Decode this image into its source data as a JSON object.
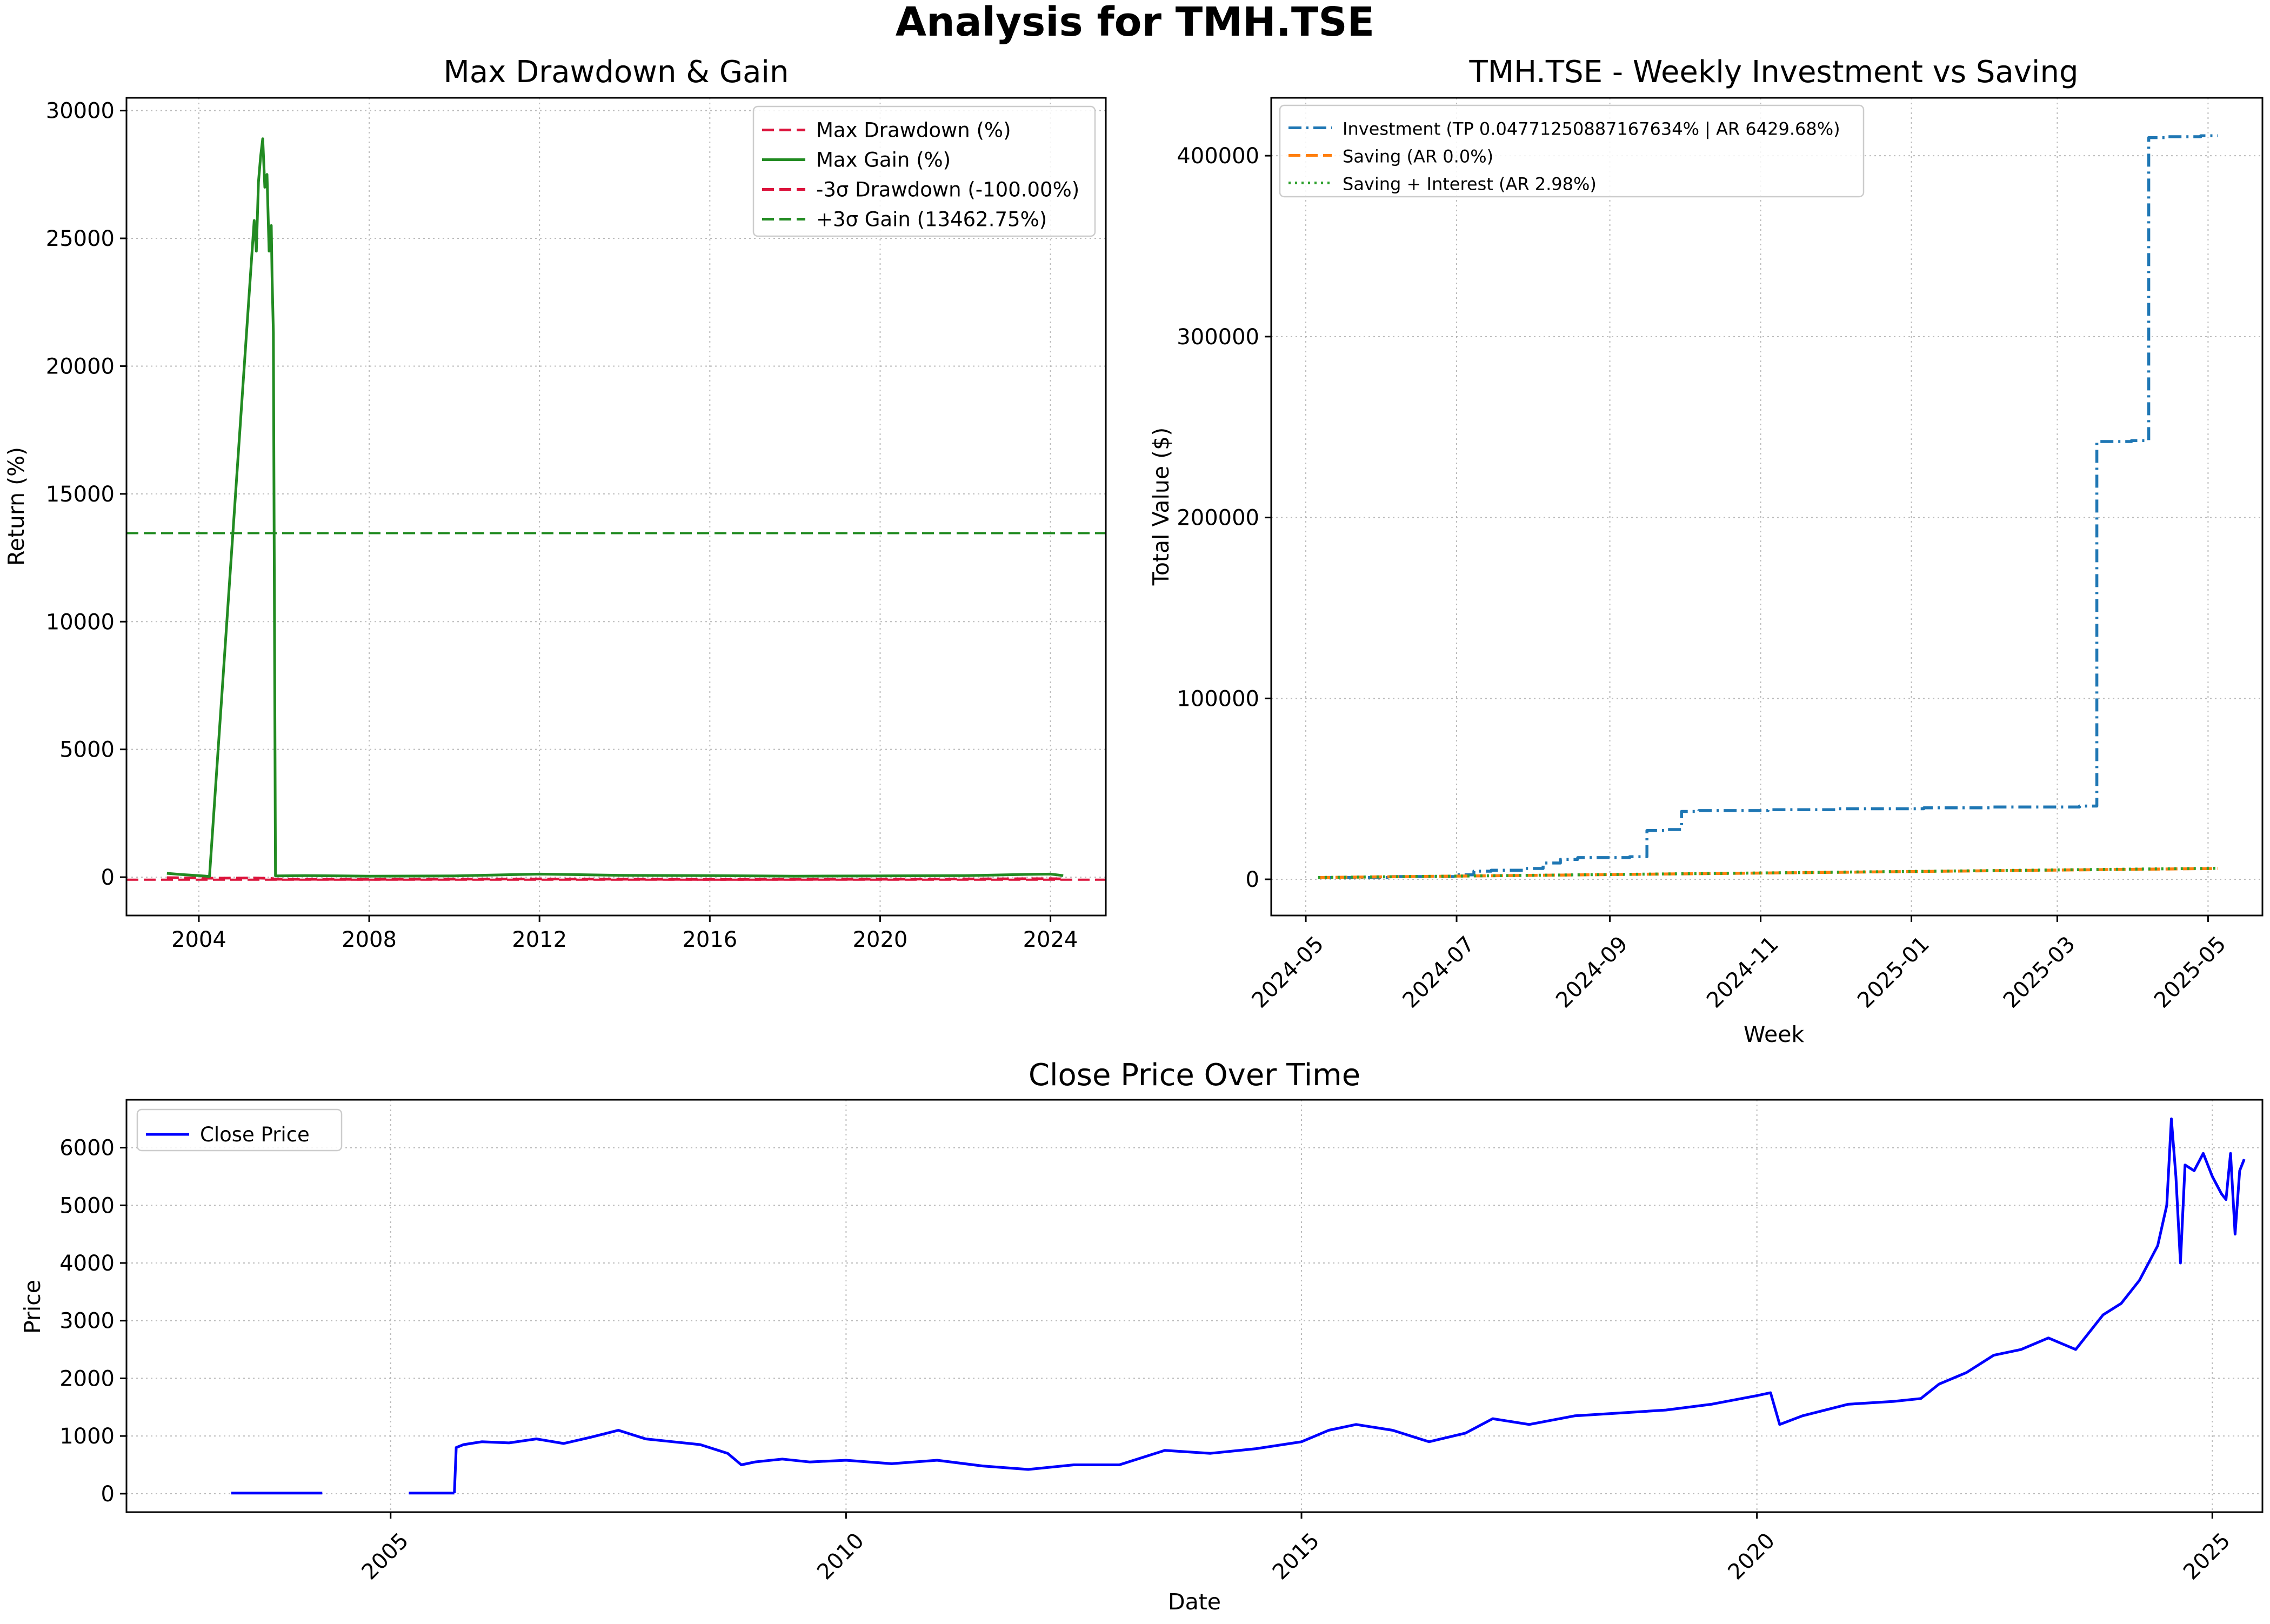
{
  "figure": {
    "title": "Analysis for TMH.TSE"
  },
  "chart_data": [
    {
      "id": "drawdown",
      "type": "line",
      "title": "Max Drawdown & Gain",
      "xlabel": "",
      "ylabel": "Return (%)",
      "xlim": [
        2002.3,
        2025.3
      ],
      "ylim": [
        -1500,
        30500
      ],
      "x_ticks": [
        2004,
        2008,
        2012,
        2016,
        2020,
        2024
      ],
      "y_ticks": [
        0,
        5000,
        10000,
        15000,
        20000,
        25000,
        30000
      ],
      "grid": true,
      "legend_position": "upper-right",
      "colors": {
        "drawdown": "#dc143c",
        "gain": "#228b22"
      },
      "series": [
        {
          "name": "Max Drawdown (%)",
          "style": "dashed",
          "x": [
            2003.25,
            2004.25,
            2005.3,
            2005.7,
            2005.8,
            2008,
            2012,
            2016,
            2020,
            2024,
            2024.3
          ],
          "y": [
            -20,
            -40,
            -30,
            -50,
            -80,
            -85,
            -70,
            -90,
            -80,
            -60,
            -70
          ]
        },
        {
          "name": "Max Gain (%)",
          "style": "solid",
          "x": [
            2003.25,
            2003.6,
            2004.0,
            2004.25,
            2005.3,
            2005.35,
            2005.4,
            2005.45,
            2005.5,
            2005.55,
            2005.6,
            2005.65,
            2005.7,
            2005.72,
            2005.75,
            2005.8,
            2006.5,
            2008,
            2010,
            2012,
            2014,
            2016,
            2018,
            2020,
            2022,
            2023.5,
            2024,
            2024.3
          ],
          "y": [
            150,
            100,
            60,
            30,
            25700,
            24500,
            27200,
            28200,
            28900,
            27000,
            27500,
            24500,
            25500,
            23500,
            21300,
            50,
            60,
            40,
            50,
            120,
            70,
            60,
            40,
            50,
            60,
            110,
            120,
            60
          ]
        },
        {
          "name": "-3σ Drawdown (-100.00%)",
          "style": "dashed",
          "hline": -100
        },
        {
          "name": "+3σ Gain (13462.75%)",
          "style": "dashed",
          "hline": 13462.75
        }
      ]
    },
    {
      "id": "investment",
      "type": "line",
      "title": "TMH.TSE - Weekly Investment vs Saving",
      "xlabel": "Week",
      "ylabel": "Total Value ($)",
      "xlim": [
        "2024-04-17",
        "2025-05-23"
      ],
      "ylim": [
        -20000,
        432000
      ],
      "x_ticks": [
        "2024-05",
        "2024-07",
        "2024-09",
        "2024-11",
        "2025-01",
        "2025-03",
        "2025-05"
      ],
      "y_ticks": [
        0,
        100000,
        200000,
        300000,
        400000
      ],
      "grid": true,
      "legend_position": "upper-left",
      "colors": {
        "investment": "#1f77b4",
        "saving": "#ff7f0e",
        "interest": "#2ca02c"
      },
      "series": [
        {
          "name": "Investment (TP 0.04771250887167634% | AR 6429.68%)",
          "style": "dashdot",
          "x": [
            "2024-05-06",
            "2024-06-03",
            "2024-07-01",
            "2024-07-08",
            "2024-07-15",
            "2024-07-29",
            "2024-08-05",
            "2024-08-12",
            "2024-08-19",
            "2024-09-09",
            "2024-09-16",
            "2024-09-23",
            "2024-09-30",
            "2024-10-07",
            "2024-11-04",
            "2024-12-02",
            "2025-01-06",
            "2025-02-03",
            "2025-03-03",
            "2025-03-10",
            "2025-03-17",
            "2025-03-24",
            "2025-03-31",
            "2025-04-07",
            "2025-04-14",
            "2025-04-21",
            "2025-04-28",
            "2025-05-05"
          ],
          "y": [
            1000,
            1500,
            2500,
            4500,
            5000,
            6000,
            9000,
            11000,
            12000,
            12500,
            27000,
            27500,
            37500,
            38000,
            38500,
            39000,
            39500,
            40000,
            40000,
            40500,
            242000,
            242000,
            242500,
            410000,
            410500,
            410500,
            411000,
            411000
          ]
        },
        {
          "name": "Saving (AR 0.0%)",
          "style": "dashed",
          "x": [
            "2024-05-06",
            "2025-05-05"
          ],
          "y": [
            1000,
            6000
          ]
        },
        {
          "name": "Saving + Interest (AR 2.98%)",
          "style": "dotted",
          "x": [
            "2024-05-06",
            "2025-05-05"
          ],
          "y": [
            1000,
            6100
          ]
        }
      ]
    },
    {
      "id": "price",
      "type": "line",
      "title": "Close Price Over Time",
      "xlabel": "Date",
      "ylabel": "Price",
      "xlim": [
        2002.1,
        2025.55
      ],
      "ylim": [
        -320,
        6830
      ],
      "x_ticks": [
        2005,
        2010,
        2015,
        2020,
        2025
      ],
      "y_ticks": [
        0,
        1000,
        2000,
        3000,
        4000,
        5000,
        6000
      ],
      "grid": true,
      "legend_position": "upper-left",
      "colors": {
        "price": "#0000ff"
      },
      "series": [
        {
          "name": "Close Price",
          "style": "solid",
          "segments": [
            {
              "x": [
                2003.25,
                2004.25
              ],
              "y": [
                10,
                10
              ]
            },
            {
              "x": [
                2005.2,
                2005.7
              ],
              "y": [
                10,
                10
              ]
            },
            {
              "x": [
                2005.7,
                2005.72,
                2005.8,
                2006.0,
                2006.3,
                2006.6,
                2006.9,
                2007.2,
                2007.5,
                2007.8,
                2008.1,
                2008.4,
                2008.7,
                2008.85,
                2009.0,
                2009.3,
                2009.6,
                2010.0,
                2010.5,
                2011.0,
                2011.5,
                2012.0,
                2012.5,
                2013.0,
                2013.5,
                2014.0,
                2014.5,
                2015.0,
                2015.3,
                2015.6,
                2016.0,
                2016.4,
                2016.8,
                2017.1,
                2017.5,
                2018.0,
                2018.5,
                2019.0,
                2019.5,
                2020.0,
                2020.15,
                2020.25,
                2020.5,
                2021.0,
                2021.5,
                2021.8,
                2022.0,
                2022.3,
                2022.6,
                2022.9,
                2023.2,
                2023.5,
                2023.8,
                2024.0,
                2024.2,
                2024.4,
                2024.5,
                2024.55,
                2024.6,
                2024.65,
                2024.7,
                2024.8,
                2024.9,
                2025.0,
                2025.1,
                2025.15,
                2025.2,
                2025.25,
                2025.3,
                2025.35
              ],
              "y": [
                10,
                800,
                850,
                900,
                880,
                950,
                870,
                980,
                1100,
                950,
                900,
                850,
                700,
                500,
                550,
                600,
                550,
                580,
                520,
                580,
                480,
                420,
                500,
                500,
                750,
                700,
                780,
                900,
                1100,
                1200,
                1100,
                900,
                1050,
                1300,
                1200,
                1350,
                1400,
                1450,
                1550,
                1700,
                1750,
                1200,
                1350,
                1550,
                1600,
                1650,
                1900,
                2100,
                2400,
                2500,
                2700,
                2500,
                3100,
                3300,
                3700,
                4300,
                5000,
                6500,
                5500,
                4000,
                5700,
                5600,
                5900,
                5500,
                5200,
                5100,
                5900,
                4500,
                5600,
                5800
              ]
            }
          ]
        }
      ]
    }
  ]
}
